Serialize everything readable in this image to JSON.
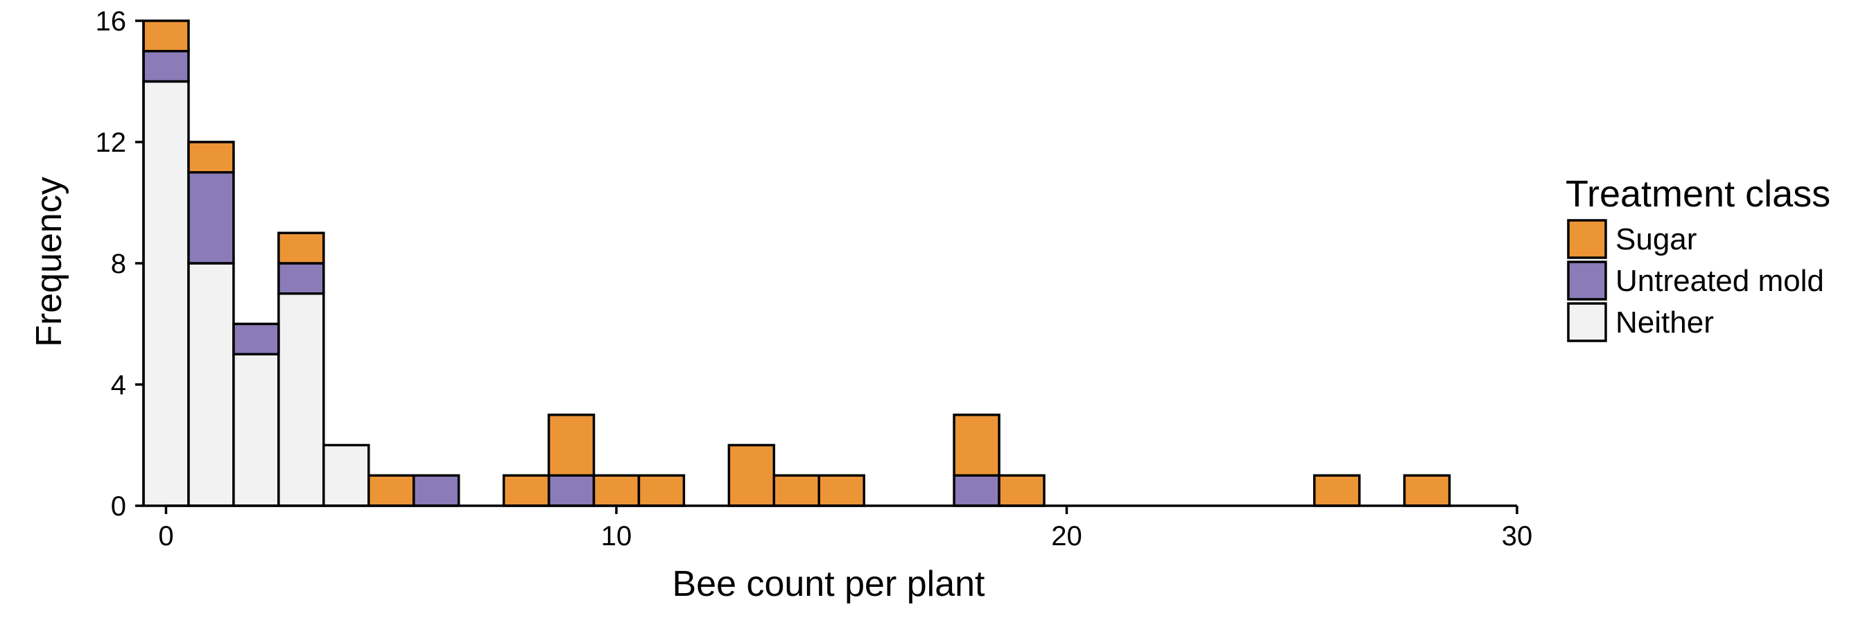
{
  "chart_data": {
    "type": "bar",
    "subtype": "stacked-histogram",
    "title": "",
    "xlabel": "Bee count per plant",
    "ylabel": "Frequency",
    "bin_width": 1,
    "xlim": [
      -0.5,
      30
    ],
    "ylim": [
      0,
      16
    ],
    "x_ticks": [
      0,
      10,
      20,
      30
    ],
    "x_tick_labels": [
      "0",
      "10",
      "20",
      "30"
    ],
    "y_ticks": [
      0,
      4,
      8,
      12,
      16
    ],
    "y_tick_labels": [
      "0",
      "4",
      "8",
      "12",
      "16"
    ],
    "grid": false,
    "legend": {
      "title": "Treatment class",
      "placement": "right"
    },
    "bins": [
      0,
      1,
      2,
      3,
      4,
      5,
      6,
      7,
      8,
      9,
      10,
      11,
      12,
      13,
      14,
      15,
      16,
      17,
      18,
      19,
      20,
      21,
      22,
      23,
      24,
      25,
      26,
      27,
      28
    ],
    "series": [
      {
        "name": "Neither",
        "color": "#F2F2F2",
        "values": [
          14,
          8,
          5,
          7,
          2,
          0,
          0,
          0,
          0,
          0,
          0,
          0,
          0,
          0,
          0,
          0,
          0,
          0,
          0,
          0,
          0,
          0,
          0,
          0,
          0,
          0,
          0,
          0,
          0
        ]
      },
      {
        "name": "Untreated mold",
        "color": "#8B7CB8",
        "values": [
          1,
          3,
          1,
          1,
          0,
          0,
          1,
          0,
          0,
          1,
          0,
          0,
          0,
          0,
          0,
          0,
          0,
          0,
          1,
          0,
          0,
          0,
          0,
          0,
          0,
          0,
          0,
          0,
          0
        ]
      },
      {
        "name": "Sugar",
        "color": "#EC9537",
        "values": [
          1,
          1,
          0,
          1,
          0,
          1,
          0,
          0,
          1,
          2,
          1,
          1,
          0,
          2,
          1,
          1,
          0,
          0,
          2,
          1,
          0,
          0,
          0,
          0,
          0,
          0,
          1,
          0,
          1
        ]
      }
    ],
    "legend_order": [
      "Sugar",
      "Untreated mold",
      "Neither"
    ]
  }
}
